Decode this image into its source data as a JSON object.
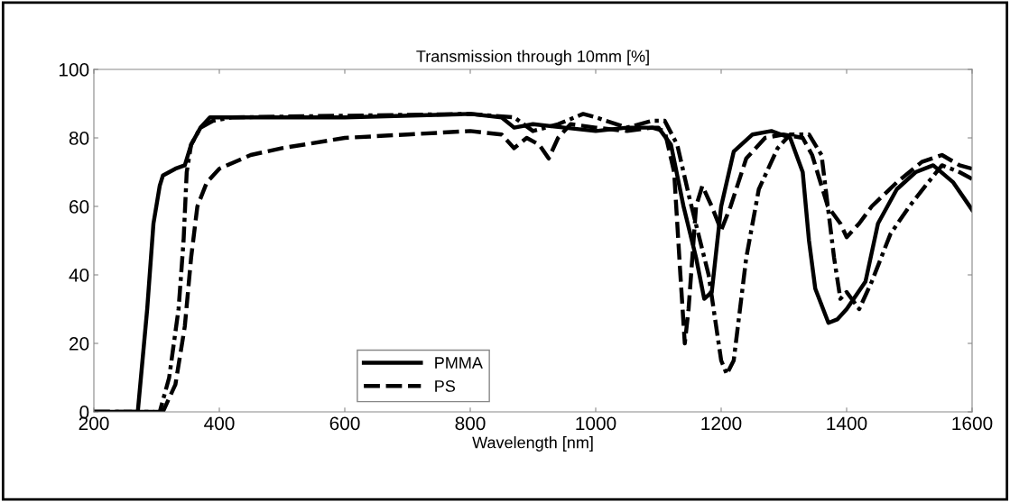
{
  "chart_data": {
    "type": "line",
    "title": "Transmission through 10mm [%]",
    "xlabel": "Wavelength [nm]",
    "xlim": [
      200,
      1600
    ],
    "xticks": [
      200,
      400,
      600,
      800,
      1000,
      1200,
      1400,
      1600
    ],
    "ylim": [
      0,
      100
    ],
    "yticks": [
      0,
      20,
      40,
      60,
      80,
      100
    ],
    "grid": false,
    "legend": "bottom",
    "marker": "none",
    "series": [
      {
        "name": "PMMA",
        "color": "#000000",
        "line_style": "solid",
        "x": [
          200,
          265,
          270,
          285,
          295,
          305,
          310,
          330,
          345,
          355,
          370,
          385,
          400,
          600,
          800,
          850,
          870,
          900,
          950,
          1000,
          1050,
          1100,
          1120,
          1140,
          1160,
          1173,
          1185,
          1200,
          1220,
          1250,
          1280,
          1310,
          1330,
          1340,
          1350,
          1371,
          1385,
          1400,
          1430,
          1450,
          1480,
          1510,
          1538,
          1570,
          1600
        ],
        "values": [
          0,
          0,
          0,
          30,
          55,
          66,
          69,
          71,
          72,
          78,
          83,
          86,
          86,
          86,
          87,
          86,
          83,
          84,
          83,
          82,
          83,
          83,
          78,
          60,
          45,
          33,
          35,
          60,
          76,
          81,
          82,
          80,
          70,
          50,
          36,
          26,
          27,
          30,
          38,
          55,
          65,
          70,
          72,
          67,
          59
        ]
      },
      {
        "name": "PS",
        "color": "#000000",
        "line_style": "dashed",
        "x": [
          200,
          310,
          330,
          345,
          355,
          365,
          380,
          400,
          450,
          500,
          600,
          700,
          800,
          850,
          870,
          890,
          910,
          925,
          940,
          960,
          1000,
          1050,
          1090,
          1110,
          1125,
          1135,
          1142,
          1148,
          1160,
          1170,
          1185,
          1200,
          1215,
          1240,
          1270,
          1299,
          1330,
          1345,
          1370,
          1390,
          1400,
          1420,
          1440,
          1480,
          1520,
          1552,
          1580,
          1600
        ],
        "values": [
          0,
          0,
          8,
          25,
          45,
          60,
          67,
          71,
          75,
          77,
          80,
          81,
          82,
          81,
          77,
          80,
          78,
          74,
          80,
          84,
          83,
          82,
          83,
          82,
          70,
          40,
          20,
          30,
          60,
          66,
          60,
          53,
          60,
          74,
          80,
          81,
          80,
          75,
          60,
          55,
          51,
          55,
          60,
          67,
          73,
          75,
          72,
          71
        ]
      },
      {
        "color": "#000000",
        "line_style": "dashdot",
        "x": [
          200,
          305,
          320,
          335,
          343,
          348,
          355,
          370,
          390,
          420,
          800,
          870,
          900,
          940,
          980,
          1000,
          1050,
          1090,
          1110,
          1130,
          1150,
          1180,
          1200,
          1209,
          1220,
          1240,
          1260,
          1290,
          1310,
          1340,
          1360,
          1380,
          1390,
          1400,
          1420,
          1440,
          1470,
          1500,
          1530,
          1552,
          1580,
          1600
        ],
        "values": [
          0,
          0,
          10,
          30,
          50,
          70,
          78,
          83,
          85,
          86,
          87,
          86,
          82,
          84,
          87,
          86,
          83,
          85,
          85,
          78,
          62,
          40,
          15,
          11,
          15,
          45,
          65,
          77,
          81,
          81,
          75,
          45,
          33,
          35,
          30,
          38,
          52,
          60,
          67,
          72,
          70,
          68
        ]
      }
    ]
  }
}
